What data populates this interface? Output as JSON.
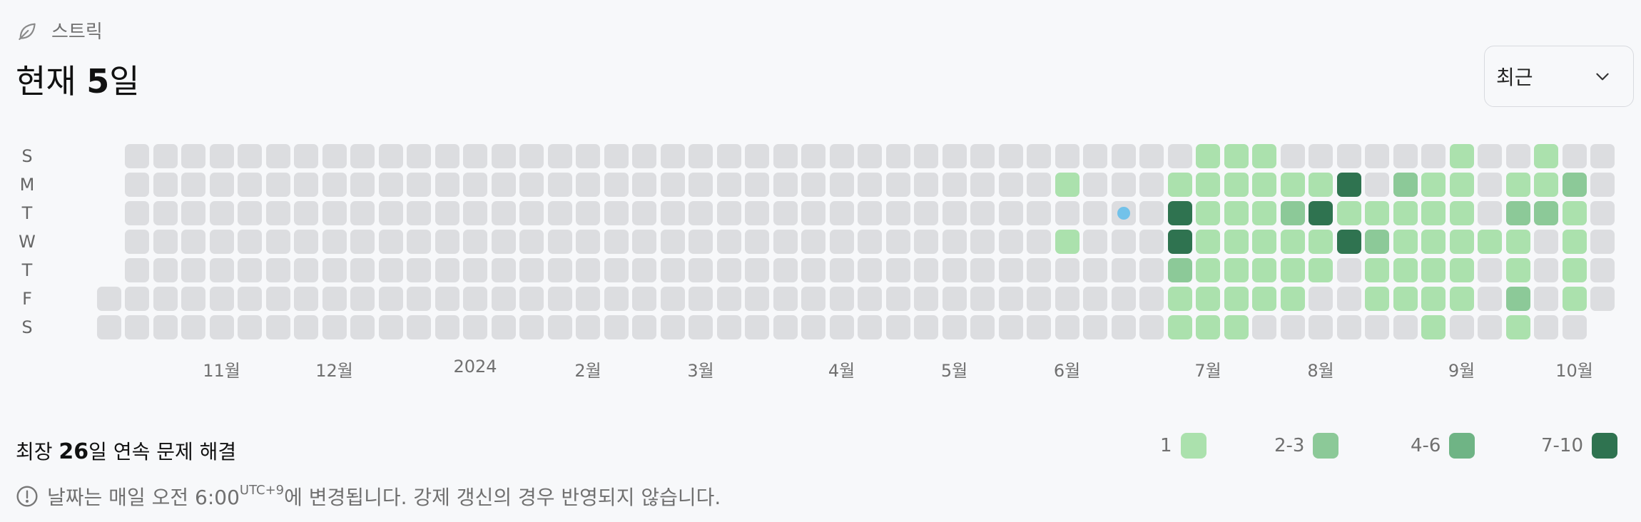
{
  "header": {
    "label": "스트릭",
    "icon": "leaf-icon",
    "current_prefix": "현재 ",
    "current_value": "5",
    "current_suffix": "일"
  },
  "period_select": {
    "value": "최근",
    "icon": "chevron-down-icon"
  },
  "day_labels": [
    "S",
    "M",
    "T",
    "W",
    "T",
    "F",
    "S"
  ],
  "month_labels": [
    {
      "label": "11월",
      "week": 4
    },
    {
      "label": "12월",
      "week": 8
    },
    {
      "label": "2024",
      "week": 13
    },
    {
      "label": "2월",
      "week": 17
    },
    {
      "label": "3월",
      "week": 21
    },
    {
      "label": "4월",
      "week": 26
    },
    {
      "label": "5월",
      "week": 30
    },
    {
      "label": "6월",
      "week": 34
    },
    {
      "label": "7월",
      "week": 39
    },
    {
      "label": "8월",
      "week": 43
    },
    {
      "label": "9월",
      "week": 48
    },
    {
      "label": "10월",
      "week": 52
    }
  ],
  "heatmap": {
    "weeks": 54,
    "first_week_start_day": 5,
    "last_week_end_day": 5,
    "today": {
      "week": 36,
      "day": 2
    },
    "levels": [
      [
        34,
        1,
        1
      ],
      [
        34,
        3,
        1
      ],
      [
        38,
        1,
        1
      ],
      [
        38,
        2,
        4
      ],
      [
        38,
        3,
        4
      ],
      [
        38,
        4,
        2
      ],
      [
        38,
        5,
        1
      ],
      [
        38,
        6,
        1
      ],
      [
        39,
        0,
        1
      ],
      [
        39,
        1,
        1
      ],
      [
        39,
        2,
        1
      ],
      [
        39,
        3,
        1
      ],
      [
        39,
        4,
        1
      ],
      [
        39,
        5,
        1
      ],
      [
        39,
        6,
        1
      ],
      [
        40,
        0,
        1
      ],
      [
        40,
        1,
        1
      ],
      [
        40,
        2,
        1
      ],
      [
        40,
        3,
        1
      ],
      [
        40,
        4,
        1
      ],
      [
        40,
        5,
        1
      ],
      [
        40,
        6,
        1
      ],
      [
        41,
        0,
        1
      ],
      [
        41,
        1,
        1
      ],
      [
        41,
        2,
        1
      ],
      [
        41,
        3,
        1
      ],
      [
        41,
        4,
        1
      ],
      [
        41,
        5,
        1
      ],
      [
        42,
        1,
        1
      ],
      [
        42,
        2,
        2
      ],
      [
        42,
        3,
        1
      ],
      [
        42,
        4,
        1
      ],
      [
        42,
        5,
        1
      ],
      [
        43,
        1,
        1
      ],
      [
        43,
        2,
        4
      ],
      [
        43,
        3,
        1
      ],
      [
        43,
        4,
        1
      ],
      [
        44,
        1,
        4
      ],
      [
        44,
        2,
        1
      ],
      [
        44,
        3,
        4
      ],
      [
        45,
        2,
        1
      ],
      [
        45,
        3,
        2
      ],
      [
        45,
        4,
        1
      ],
      [
        45,
        5,
        1
      ],
      [
        46,
        1,
        2
      ],
      [
        46,
        2,
        1
      ],
      [
        46,
        3,
        1
      ],
      [
        46,
        4,
        1
      ],
      [
        46,
        5,
        1
      ],
      [
        47,
        1,
        1
      ],
      [
        47,
        2,
        1
      ],
      [
        47,
        3,
        1
      ],
      [
        47,
        4,
        1
      ],
      [
        47,
        5,
        1
      ],
      [
        47,
        6,
        1
      ],
      [
        48,
        0,
        1
      ],
      [
        48,
        1,
        1
      ],
      [
        48,
        2,
        1
      ],
      [
        48,
        3,
        1
      ],
      [
        48,
        4,
        1
      ],
      [
        48,
        5,
        1
      ],
      [
        49,
        3,
        1
      ],
      [
        50,
        1,
        1
      ],
      [
        50,
        2,
        2
      ],
      [
        50,
        3,
        1
      ],
      [
        50,
        4,
        1
      ],
      [
        50,
        5,
        2
      ],
      [
        50,
        6,
        1
      ],
      [
        51,
        0,
        1
      ],
      [
        51,
        1,
        1
      ],
      [
        51,
        2,
        2
      ],
      [
        52,
        1,
        2
      ],
      [
        52,
        2,
        1
      ],
      [
        52,
        3,
        1
      ],
      [
        52,
        4,
        1
      ],
      [
        52,
        5,
        1
      ]
    ]
  },
  "longest": {
    "prefix": "최장 ",
    "value": "26",
    "suffix": "일 연속 문제 해결"
  },
  "legend": [
    {
      "label": "1",
      "level": 1
    },
    {
      "label": "2-3",
      "level": 2
    },
    {
      "label": "4-6",
      "level": 3
    },
    {
      "label": "7-10",
      "level": 4
    }
  ],
  "note": {
    "icon": "info-icon",
    "text_before": "날짜는 매일 오전 6:00",
    "timezone": "UTC+9",
    "text_after": "에 변경됩니다. 강제 갱신의 경우 반영되지 않습니다."
  },
  "colors": {
    "empty": "#dcdde0",
    "level_1": "#abe1ad",
    "level_2": "#8cc998",
    "level_3": "#6fb485",
    "level_4": "#2f7350",
    "today_dot": "#72c2ea"
  }
}
